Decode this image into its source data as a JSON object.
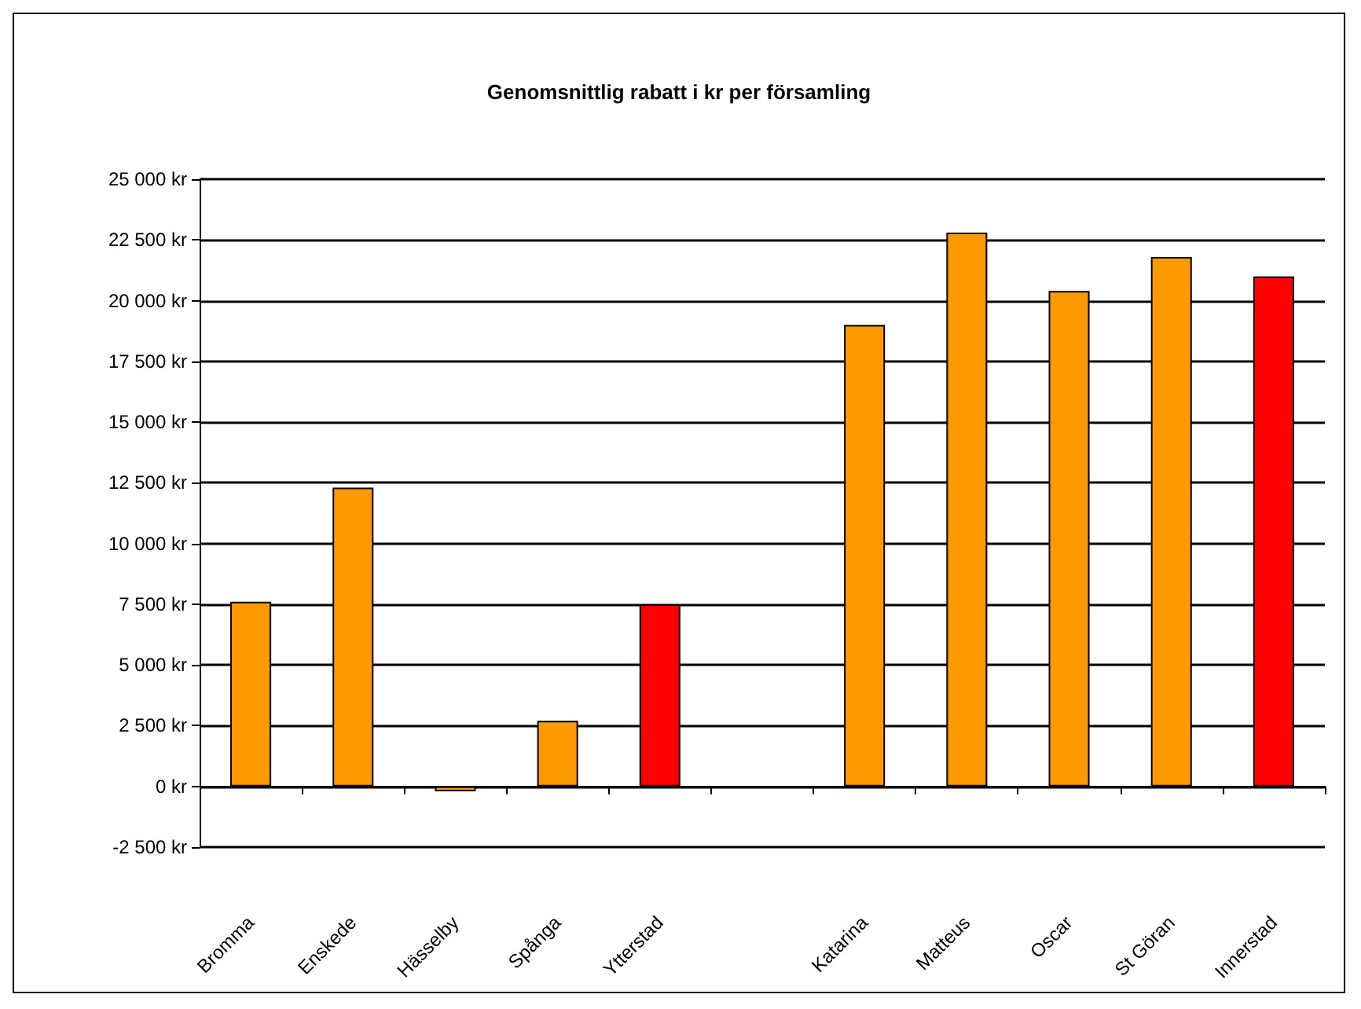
{
  "chart_data": {
    "type": "bar",
    "title": "Genomsnittlig rabatt i kr per församling",
    "categories": [
      "Bromma",
      "Enskede",
      "Hässelby",
      "Spånga",
      "Ytterstad",
      null,
      "Katarina",
      "Matteus",
      "Oscar",
      "St Göran",
      "Innerstad"
    ],
    "values": [
      7600,
      12300,
      -200,
      2700,
      7500,
      null,
      19000,
      22800,
      20400,
      21800,
      21000
    ],
    "colors": [
      "#ff9900",
      "#ff9900",
      "#ff9900",
      "#ff9900",
      "#ff0000",
      "#ff9900",
      "#ff9900",
      "#ff9900",
      "#ff9900",
      "#ff9900",
      "#ff0000"
    ],
    "ylim": [
      -2500,
      25000
    ],
    "yticks": [
      {
        "value": -2500,
        "label": "-2 500 kr"
      },
      {
        "value": 0,
        "label": "0 kr"
      },
      {
        "value": 2500,
        "label": "2 500 kr"
      },
      {
        "value": 5000,
        "label": "5 000 kr"
      },
      {
        "value": 7500,
        "label": "7 500 kr"
      },
      {
        "value": 10000,
        "label": "10 000 kr"
      },
      {
        "value": 12500,
        "label": "12 500 kr"
      },
      {
        "value": 15000,
        "label": "15 000 kr"
      },
      {
        "value": 17500,
        "label": "17 500 kr"
      },
      {
        "value": 20000,
        "label": "20 000 kr"
      },
      {
        "value": 22500,
        "label": "22 500 kr"
      },
      {
        "value": 25000,
        "label": "25 000 kr"
      }
    ],
    "grid": "y"
  }
}
